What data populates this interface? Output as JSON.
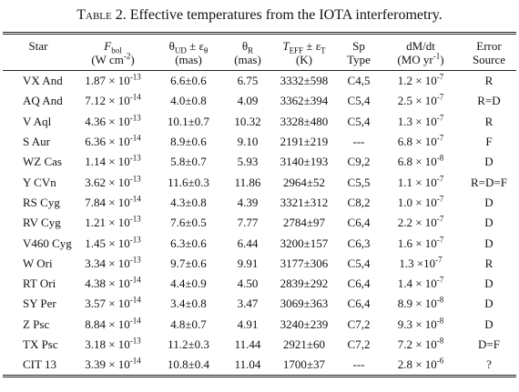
{
  "caption": {
    "label": "Table 2.",
    "text": "Effective temperatures from the IOTA interferometry."
  },
  "table": {
    "columns": [
      [
        [
          "Star"
        ]
      ],
      [
        [
          {
            "em": "F"
          },
          {
            "sub": "bol"
          }
        ],
        [
          "(W cm",
          {
            "sup": "-2"
          },
          ")"
        ]
      ],
      [
        [
          "θ",
          {
            "sub": "UD"
          },
          " ± ε",
          {
            "sub": "θ"
          }
        ],
        [
          "(mas)"
        ]
      ],
      [
        [
          "θ",
          {
            "sub": "R"
          }
        ],
        [
          "(mas)"
        ]
      ],
      [
        [
          {
            "em": "T"
          },
          {
            "sub": "EFF"
          },
          " ± ε",
          {
            "sub": "T"
          }
        ],
        [
          "(K)"
        ]
      ],
      [
        [
          "Sp"
        ],
        [
          "Type"
        ]
      ],
      [
        [
          "dM/dt"
        ],
        [
          "(MO yr",
          {
            "sup": "-1"
          },
          ")"
        ]
      ],
      [
        [
          "Error"
        ],
        [
          "Source"
        ]
      ]
    ],
    "rows": [
      [
        "VX And",
        [
          "1.87 × 10",
          {
            "sup": "-13"
          }
        ],
        "6.6±0.6",
        "6.75",
        "3332±598",
        "C4,5",
        [
          "1.2 × 10",
          {
            "sup": "-7"
          }
        ],
        "R"
      ],
      [
        "AQ And",
        [
          "7.12 × 10",
          {
            "sup": "-14"
          }
        ],
        "4.0±0.8",
        "4.09",
        "3362±394",
        "C5,4",
        [
          "2.5 × 10",
          {
            "sup": "-7"
          }
        ],
        "R=D"
      ],
      [
        "V Aql",
        [
          "4.36 × 10",
          {
            "sup": "-13"
          }
        ],
        "10.1±0.7",
        "10.32",
        "3328±480",
        "C5,4",
        [
          "1.3 × 10",
          {
            "sup": "-7"
          }
        ],
        "R"
      ],
      [
        "S Aur",
        [
          "6.36 × 10",
          {
            "sup": "-14"
          }
        ],
        "8.9±0.6",
        "9.10",
        "2191±219",
        "---",
        [
          "6.8 × 10",
          {
            "sup": "-7"
          }
        ],
        "F"
      ],
      [
        "WZ Cas",
        [
          "1.14 × 10",
          {
            "sup": "-13"
          }
        ],
        "5.8±0.7",
        "5.93",
        "3140±193",
        "C9,2",
        [
          "6.8 × 10",
          {
            "sup": "-8"
          }
        ],
        "D"
      ],
      [
        "Y CVn",
        [
          "3.62 × 10",
          {
            "sup": "-13"
          }
        ],
        "11.6±0.3",
        "11.86",
        "2964±52",
        "C5,5",
        [
          "1.1 × 10",
          {
            "sup": "-7"
          }
        ],
        "R=D=F"
      ],
      [
        "RS Cyg",
        [
          "7.84 × 10",
          {
            "sup": "-14"
          }
        ],
        "4.3±0.8",
        "4.39",
        "3321±312",
        "C8,2",
        [
          "1.0 × 10",
          {
            "sup": "-7"
          }
        ],
        "D"
      ],
      [
        "RV Cyg",
        [
          "1.21 × 10",
          {
            "sup": "-13"
          }
        ],
        "7.6±0.5",
        "7.77",
        "2784±97",
        "C6,4",
        [
          "2.2 × 10",
          {
            "sup": "-7"
          }
        ],
        "D"
      ],
      [
        "V460 Cyg",
        [
          "1.45 × 10",
          {
            "sup": "-13"
          }
        ],
        "6.3±0.6",
        "6.44",
        "3200±157",
        "C6,3",
        [
          "1.6 × 10",
          {
            "sup": "-7"
          }
        ],
        "D"
      ],
      [
        "W Ori",
        [
          "3.34 × 10",
          {
            "sup": "-13"
          }
        ],
        "9.7±0.6",
        "9.91",
        "3177±306",
        "C5,4",
        [
          "1.3 ×10",
          {
            "sup": "-7"
          }
        ],
        "R"
      ],
      [
        "RT Ori",
        [
          "4.38 × 10",
          {
            "sup": "-14"
          }
        ],
        "4.4±0.9",
        "4.50",
        "2839±292",
        "C6,4",
        [
          "1.4 × 10",
          {
            "sup": "-7"
          }
        ],
        "D"
      ],
      [
        "SY Per",
        [
          "3.57 × 10",
          {
            "sup": "-14"
          }
        ],
        "3.4±0.8",
        "3.47",
        "3069±363",
        "C6,4",
        [
          "8.9 × 10",
          {
            "sup": "-8"
          }
        ],
        "D"
      ],
      [
        "Z Psc",
        [
          "8.84 × 10",
          {
            "sup": "-14"
          }
        ],
        "4.8±0.7",
        "4.91",
        "3240±239",
        "C7,2",
        [
          "9.3 × 10",
          {
            "sup": "-8"
          }
        ],
        "D"
      ],
      [
        "TX Psc",
        [
          "3.18 × 10",
          {
            "sup": "-13"
          }
        ],
        "11.2±0.3",
        "11.44",
        "2921±60",
        "C7,2",
        [
          "7.2 × 10",
          {
            "sup": "-8"
          }
        ],
        "D=F"
      ],
      [
        "CIT 13",
        [
          "3.39 × 10",
          {
            "sup": "-14"
          }
        ],
        "10.8±0.4",
        "11.04",
        "1700±37",
        "---",
        [
          "2.8 × 10",
          {
            "sup": "-6"
          }
        ],
        "?"
      ]
    ]
  }
}
